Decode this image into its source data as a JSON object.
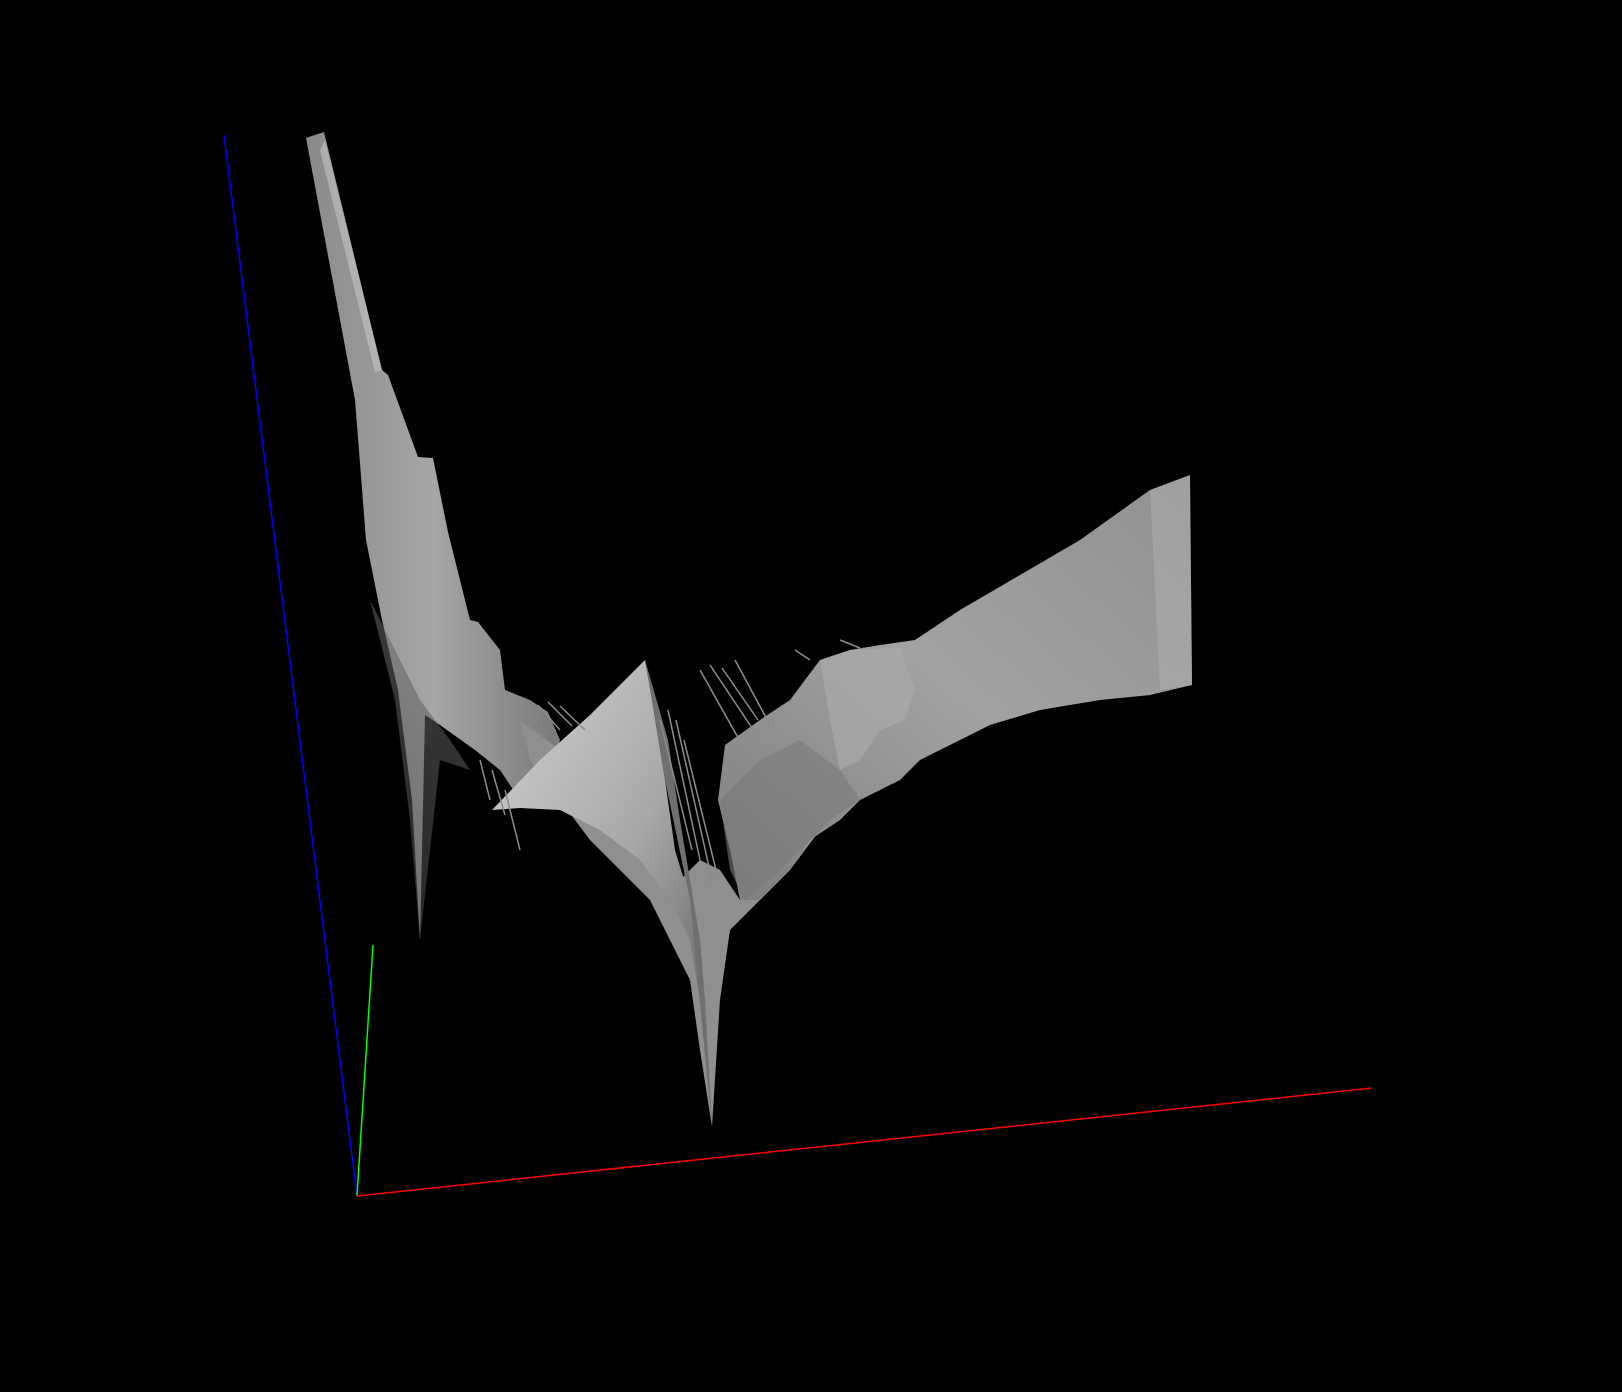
{
  "scene": {
    "background": "#000000",
    "axes": {
      "x": {
        "color": "#ff0000"
      },
      "y": {
        "color": "#00ff00"
      },
      "z": {
        "color": "#0000ff"
      }
    },
    "surface": {
      "color": "#9a9a9a",
      "highlight": "#c4c4c4",
      "shadow": "#5c5c5c",
      "shading": "gray-lit"
    }
  }
}
